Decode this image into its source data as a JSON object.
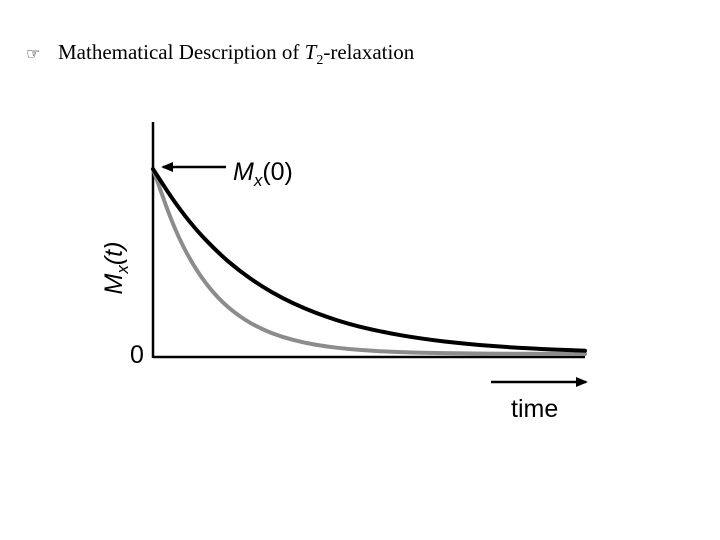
{
  "title": {
    "bullet_icon": "pointing-hand-icon",
    "prefix": "Mathematical Description of ",
    "symbol": "T",
    "subscript": "2",
    "suffix": "-relaxation"
  },
  "chart_data": {
    "type": "line",
    "title": "",
    "xlabel": "time",
    "ylabel_main": "M",
    "ylabel_sub": "x",
    "ylabel_arg": "(t)",
    "y_zero_label": "0",
    "annotation": {
      "main": "M",
      "sub": "x",
      "arg": "(0)"
    },
    "xlim": [
      0,
      10
    ],
    "ylim": [
      0,
      1
    ],
    "grid": false,
    "legend": "none",
    "series": [
      {
        "color": "#000000",
        "x": [
          0,
          0.5,
          1,
          1.5,
          2,
          2.5,
          3,
          3.5,
          4,
          4.5,
          5,
          5.5,
          6,
          6.5,
          7,
          7.5,
          8,
          8.5,
          9,
          9.5,
          10
        ],
        "y": [
          1.0,
          0.819,
          0.67,
          0.549,
          0.449,
          0.368,
          0.301,
          0.247,
          0.202,
          0.165,
          0.135,
          0.111,
          0.091,
          0.074,
          0.061,
          0.05,
          0.041,
          0.033,
          0.027,
          0.022,
          0.018
        ]
      },
      {
        "color": "#8c8c8c",
        "x": [
          0,
          0.5,
          1,
          1.5,
          2,
          2.5,
          3,
          3.5,
          4,
          4.5,
          5,
          5.5,
          6,
          6.5,
          7,
          7.5,
          8,
          8.5,
          9,
          9.5,
          10
        ],
        "y": [
          1.0,
          0.67,
          0.449,
          0.301,
          0.202,
          0.135,
          0.091,
          0.061,
          0.041,
          0.027,
          0.018,
          0.012,
          0.008,
          0.006,
          0.004,
          0.002,
          0.002,
          0.001,
          0.001,
          0.0,
          0.0
        ]
      }
    ],
    "colors": {
      "axis": "#000000",
      "text": "#000000"
    }
  }
}
